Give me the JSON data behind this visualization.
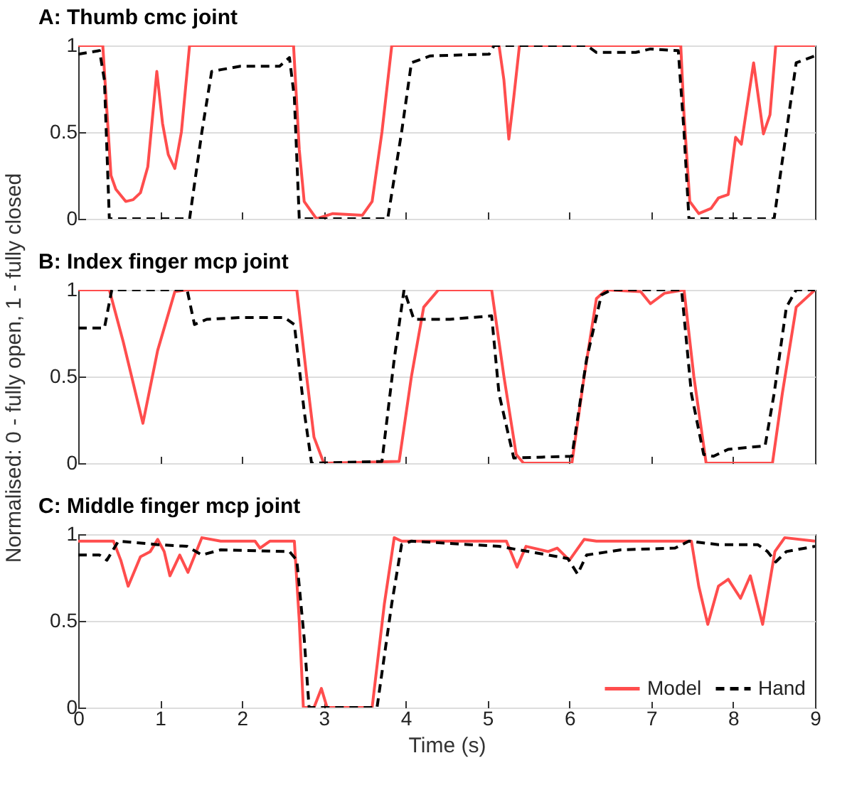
{
  "chart_data": [
    {
      "type": "line",
      "title": "A: Thumb cmc joint",
      "xlim": [
        0,
        9
      ],
      "xticks": [
        0,
        1,
        2,
        3,
        4,
        5,
        6,
        7,
        8,
        9
      ],
      "ylim": [
        0,
        1
      ],
      "yticks": [
        0,
        0.5,
        1
      ],
      "grid": "y",
      "legend": false,
      "tick_labels": "y",
      "series": [
        {
          "color": "#ff4d4d",
          "line_style": "solid",
          "x": [
            0,
            0.3,
            0.4,
            0.46,
            0.58,
            0.67,
            0.76,
            0.85,
            0.96,
            1.03,
            1.1,
            1.18,
            1.26,
            1.36,
            2.63,
            2.7,
            2.76,
            2.91,
            3.11,
            3.47,
            3.59,
            3.71,
            3.83,
            5.14,
            5.2,
            5.26,
            5.32,
            5.39,
            7.36,
            7.4,
            7.47,
            7.58,
            7.73,
            7.82,
            7.94,
            8.03,
            8.1,
            8.25,
            8.37,
            8.45,
            8.52,
            9
          ],
          "values": [
            1,
            1,
            0.25,
            0.17,
            0.1,
            0.11,
            0.15,
            0.3,
            0.85,
            0.55,
            0.37,
            0.29,
            0.5,
            1,
            1,
            0.4,
            0.1,
            0,
            0.03,
            0.02,
            0.1,
            0.5,
            1,
            1,
            0.8,
            0.46,
            0.7,
            1,
            1,
            0.6,
            0.1,
            0.03,
            0.06,
            0.12,
            0.14,
            0.47,
            0.43,
            0.9,
            0.49,
            0.6,
            1,
            1
          ]
        },
        {
          "color": "#000000",
          "line_style": "dashed",
          "x": [
            0,
            0.26,
            0.32,
            0.38,
            1.36,
            1.51,
            1.63,
            1.74,
            1.98,
            2.46,
            2.58,
            2.64,
            2.7,
            3.78,
            3.95,
            4.07,
            4.3,
            5.02,
            5.08,
            6.21,
            6.33,
            6.81,
            6.99,
            7.33,
            7.4,
            7.46,
            8.5,
            8.65,
            8.77,
            9
          ],
          "values": [
            0.95,
            0.97,
            0.8,
            0,
            0,
            0.5,
            0.85,
            0.86,
            0.88,
            0.88,
            0.93,
            0.7,
            0,
            0,
            0.5,
            0.9,
            0.94,
            0.95,
            1,
            1,
            0.96,
            0.96,
            0.98,
            0.97,
            0.5,
            0,
            0,
            0.5,
            0.9,
            0.94
          ]
        }
      ]
    },
    {
      "type": "line",
      "title": "B: Index finger mcp joint",
      "ylabel": "Normalised: 0 - fully open, 1 - fully closed",
      "xlim": [
        0,
        9
      ],
      "xticks": [
        0,
        1,
        2,
        3,
        4,
        5,
        6,
        7,
        8,
        9
      ],
      "ylim": [
        0,
        1
      ],
      "yticks": [
        0,
        0.5,
        1
      ],
      "grid": "y",
      "legend": false,
      "tick_labels": "y",
      "series": [
        {
          "color": "#ff4d4d",
          "line_style": "solid",
          "x": [
            0,
            0.38,
            0.55,
            0.79,
            0.97,
            1.18,
            1.33,
            2.67,
            2.79,
            2.88,
            3.0,
            3.92,
            4.07,
            4.22,
            4.4,
            5.05,
            5.2,
            5.35,
            5.44,
            6.03,
            6.18,
            6.33,
            6.45,
            6.87,
            6.99,
            7.16,
            7.4,
            7.52,
            7.67,
            8.48,
            8.6,
            8.77,
            9
          ],
          "values": [
            1,
            1,
            0.7,
            0.23,
            0.65,
            0.99,
            1,
            1,
            0.5,
            0.15,
            0,
            0.01,
            0.5,
            0.9,
            1,
            1,
            0.5,
            0.05,
            0,
            0,
            0.5,
            0.95,
            1,
            0.99,
            0.92,
            0.98,
            1,
            0.5,
            0,
            0,
            0.4,
            0.9,
            1
          ]
        },
        {
          "color": "#000000",
          "line_style": "dashed",
          "x": [
            0,
            0.32,
            0.41,
            1.33,
            1.42,
            1.57,
            1.98,
            2.52,
            2.64,
            2.76,
            2.85,
            3.71,
            3.86,
            3.98,
            4.1,
            4.54,
            5.05,
            5.14,
            5.32,
            6.03,
            6.21,
            6.39,
            6.51,
            7.37,
            7.49,
            7.64,
            7.76,
            7.94,
            8.39,
            8.5,
            8.65,
            8.77,
            9
          ],
          "values": [
            0.78,
            0.78,
            1,
            1,
            0.8,
            0.83,
            0.84,
            0.84,
            0.8,
            0.3,
            0,
            0.01,
            0.6,
            1,
            0.83,
            0.83,
            0.85,
            0.4,
            0.03,
            0.04,
            0.6,
            0.97,
            1,
            1,
            0.4,
            0.05,
            0.04,
            0.08,
            0.1,
            0.4,
            0.9,
            1,
            1
          ]
        }
      ]
    },
    {
      "type": "line",
      "title": "C: Middle finger mcp joint",
      "xlabel": "Time (s)",
      "xlim": [
        0,
        9
      ],
      "xticks": [
        0,
        1,
        2,
        3,
        4,
        5,
        6,
        7,
        8,
        9
      ],
      "ylim": [
        0,
        1
      ],
      "yticks": [
        0,
        0.5,
        1
      ],
      "grid": "y",
      "legend": "bottom right",
      "series": [
        {
          "name": "Model",
          "color": "#ff4d4d",
          "line_style": "solid",
          "x": [
            0,
            0.43,
            0.52,
            0.61,
            0.76,
            0.88,
            0.97,
            1.05,
            1.12,
            1.24,
            1.34,
            1.51,
            1.74,
            2.16,
            2.22,
            2.34,
            2.64,
            2.7,
            2.75,
            2.88,
            2.97,
            3.04,
            3.59,
            3.74,
            3.86,
            3.95,
            4.31,
            5.23,
            5.36,
            5.47,
            5.74,
            5.85,
            6.0,
            6.18,
            6.33,
            7.49,
            7.58,
            7.69,
            7.82,
            7.94,
            8.09,
            8.21,
            8.36,
            8.51,
            8.63,
            9
          ],
          "values": [
            0.96,
            0.96,
            0.85,
            0.7,
            0.87,
            0.9,
            0.97,
            0.9,
            0.76,
            0.88,
            0.78,
            0.98,
            0.96,
            0.96,
            0.92,
            0.96,
            0.96,
            0.5,
            0,
            0,
            0.11,
            0,
            0,
            0.6,
            0.98,
            0.96,
            0.96,
            0.96,
            0.81,
            0.93,
            0.9,
            0.92,
            0.85,
            0.97,
            0.96,
            0.96,
            0.7,
            0.48,
            0.7,
            0.74,
            0.63,
            0.76,
            0.48,
            0.9,
            0.98,
            0.96
          ]
        },
        {
          "name": "Hand",
          "color": "#000000",
          "line_style": "dashed",
          "x": [
            0,
            0.26,
            0.35,
            0.49,
            0.97,
            1.33,
            1.51,
            1.74,
            2.58,
            2.67,
            2.76,
            2.82,
            3.65,
            3.83,
            3.95,
            4.07,
            5.14,
            5.74,
            5.98,
            6.1,
            6.21,
            6.63,
            7.29,
            7.46,
            7.82,
            8.3,
            8.42,
            8.52,
            8.65,
            9
          ],
          "values": [
            0.88,
            0.88,
            0.85,
            0.96,
            0.94,
            0.93,
            0.88,
            0.91,
            0.9,
            0.85,
            0.4,
            0,
            0,
            0.6,
            0.94,
            0.96,
            0.93,
            0.88,
            0.86,
            0.77,
            0.88,
            0.91,
            0.92,
            0.96,
            0.94,
            0.94,
            0.9,
            0.84,
            0.9,
            0.93
          ]
        }
      ]
    }
  ]
}
